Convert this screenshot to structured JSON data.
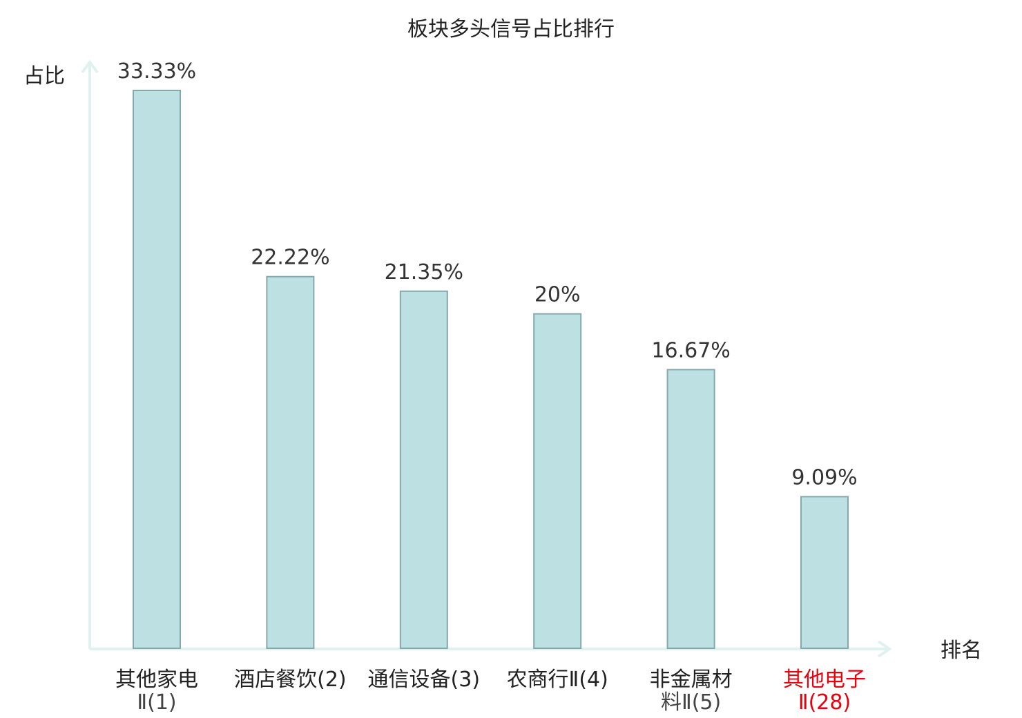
{
  "chart_data": {
    "type": "bar",
    "title": "板块多头信号占比排行",
    "ylabel": "占比",
    "xlabel": "排名",
    "ylim": [
      0,
      35
    ],
    "grid": false,
    "categories": [
      {
        "line1": "其他家电",
        "line2": "Ⅱ(1)",
        "highlight": false
      },
      {
        "line1": "酒店餐饮(2)",
        "line2": "",
        "highlight": false
      },
      {
        "line1": "通信设备(3)",
        "line2": "",
        "highlight": false
      },
      {
        "line1": "农商行Ⅱ(4)",
        "line2": "",
        "highlight": false
      },
      {
        "line1": "非金属材",
        "line2": "料Ⅱ(5)",
        "highlight": false
      },
      {
        "line1": "其他电子",
        "line2": "Ⅱ(28)",
        "highlight": true
      }
    ],
    "values": [
      33.33,
      22.22,
      21.35,
      20,
      16.67,
      9.09
    ],
    "value_labels": [
      "33.33%",
      "22.22%",
      "21.35%",
      "20%",
      "16.67%",
      "9.09%"
    ],
    "colors": {
      "bar_fill": "#bde0e3",
      "bar_stroke": "#84a9ac",
      "axis": "#e0f2ef",
      "highlight_text": "#e8000b"
    }
  }
}
